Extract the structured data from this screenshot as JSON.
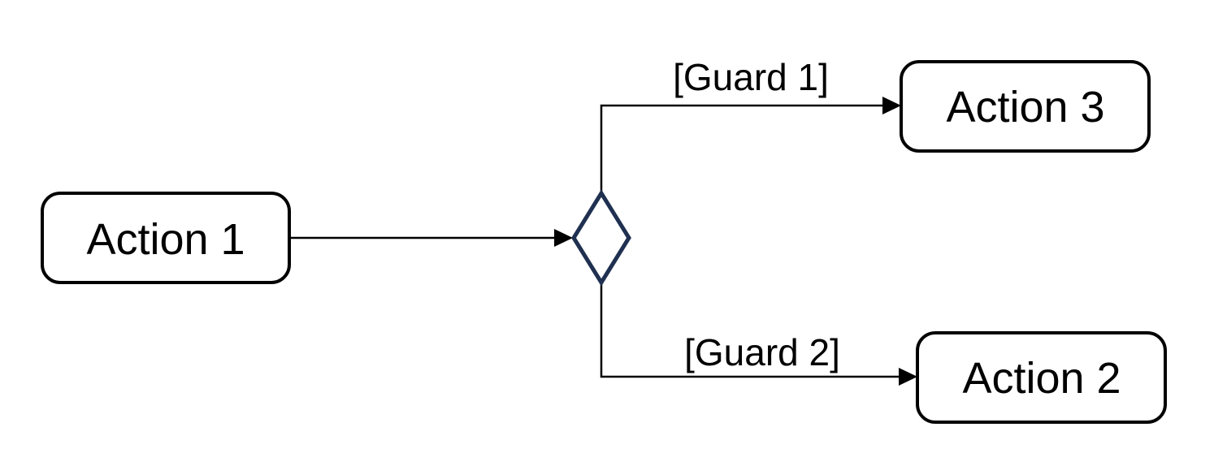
{
  "diagram": {
    "nodes": {
      "action1": {
        "label": "Action 1"
      },
      "action2": {
        "label": "Action 2"
      },
      "action3": {
        "label": "Action 3"
      }
    },
    "guards": {
      "guard1": "[Guard 1]",
      "guard2": "[Guard 2]"
    },
    "colors": {
      "decision_stroke": "#1f3050",
      "line": "#000000"
    }
  }
}
